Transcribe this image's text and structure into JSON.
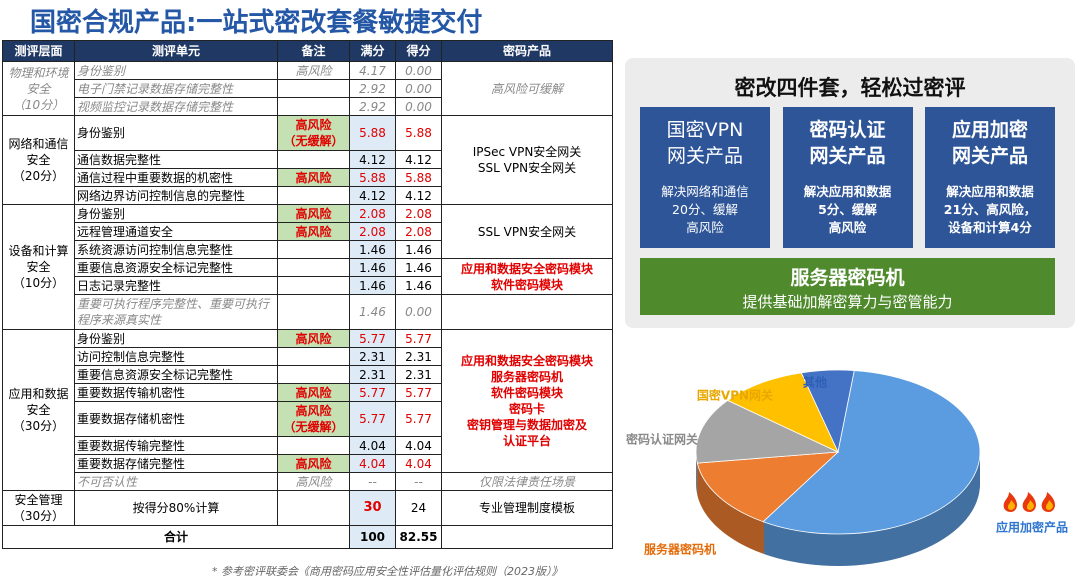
{
  "header": {
    "title": "国密合规产品:一站式密改套餐敏捷交付"
  },
  "table": {
    "columns": [
      "测评层面",
      "测评单元",
      "备注",
      "满分",
      "得分",
      "密码产品"
    ],
    "sections": [
      {
        "level": [
          "物理和环境",
          "安全",
          "（10分）"
        ],
        "muted": true,
        "rows": [
          {
            "unit": "身份鉴别",
            "note": [
              "高风险"
            ],
            "full": "4.17",
            "score": "0.00",
            "muted": true
          },
          {
            "unit": "电子门禁记录数据存储完整性",
            "full": "2.92",
            "score": "0.00",
            "muted": true
          },
          {
            "unit": "视频监控记录数据存储完整性",
            "full": "2.92",
            "score": "0.00",
            "muted": true
          }
        ],
        "products": [
          {
            "lines": [
              "高风险可缓解"
            ],
            "span": 3,
            "muted": true
          }
        ]
      },
      {
        "level": [
          "网络和通信",
          "安全",
          "（20分）"
        ],
        "rows": [
          {
            "unit": "身份鉴别",
            "note": [
              "高风险",
              "（无缓解）"
            ],
            "full": "5.88",
            "score": "5.88"
          },
          {
            "unit": "通信数据完整性",
            "full": "4.12",
            "score": "4.12"
          },
          {
            "unit": "通信过程中重要数据的机密性",
            "note": [
              "高风险"
            ],
            "full": "5.88",
            "score": "5.88"
          },
          {
            "unit": "网络边界访问控制信息的完整性",
            "full": "4.12",
            "score": "4.12"
          }
        ],
        "products": [
          {
            "lines": [
              "IPSec VPN安全网关",
              "SSL VPN安全网关"
            ],
            "span": 4
          }
        ]
      },
      {
        "level": [
          "设备和计算",
          "安全",
          "（10分）"
        ],
        "rows": [
          {
            "unit": "身份鉴别",
            "note": [
              "高风险"
            ],
            "full": "2.08",
            "score": "2.08"
          },
          {
            "unit": "远程管理通道安全",
            "note": [
              "高风险"
            ],
            "full": "2.08",
            "score": "2.08"
          },
          {
            "unit": "系统资源访问控制信息完整性",
            "full": "1.46",
            "score": "1.46"
          },
          {
            "unit": "重要信息资源安全标记完整性",
            "full": "1.46",
            "score": "1.46"
          },
          {
            "unit": "日志记录完整性",
            "full": "1.46",
            "score": "1.46"
          },
          {
            "unit": "重要可执行程序完整性、重要可执行程序来源真实性",
            "full": "1.46",
            "score": "0.00",
            "muted": true
          }
        ],
        "products": [
          {
            "lines": [
              "SSL VPN安全网关"
            ],
            "span": 3
          },
          {
            "lines": [
              "应用和数据安全密码模块",
              "软件密码模块"
            ],
            "span": 2,
            "alert": true
          },
          {
            "lines": [],
            "span": 1
          }
        ]
      },
      {
        "level": [
          "应用和数据",
          "安全",
          "（30分）"
        ],
        "rows": [
          {
            "unit": "身份鉴别",
            "note": [
              "高风险"
            ],
            "full": "5.77",
            "score": "5.77"
          },
          {
            "unit": "访问控制信息完整性",
            "full": "2.31",
            "score": "2.31"
          },
          {
            "unit": "重要信息资源安全标记完整性",
            "full": "2.31",
            "score": "2.31"
          },
          {
            "unit": "重要数据传输机密性",
            "note": [
              "高风险"
            ],
            "full": "5.77",
            "score": "5.77"
          },
          {
            "unit": "重要数据存储机密性",
            "note": [
              "高风险",
              "（无缓解）"
            ],
            "full": "5.77",
            "score": "5.77"
          },
          {
            "unit": "重要数据传输完整性",
            "full": "4.04",
            "score": "4.04"
          },
          {
            "unit": "重要数据存储完整性",
            "note": [
              "高风险"
            ],
            "full": "4.04",
            "score": "4.04"
          },
          {
            "unit": "不可否认性",
            "note": [
              "高风险"
            ],
            "full": "--",
            "score": "--",
            "muted": true
          }
        ],
        "products": [
          {
            "lines": [
              "应用和数据安全密码模块",
              "服务器密码机",
              "软件密码模块",
              "密码卡",
              "密钥管理与数据加密及",
              "认证平台"
            ],
            "span": 7,
            "alert": true
          },
          {
            "lines": [
              "仅限法律责任场景"
            ],
            "span": 1,
            "muted": true
          }
        ]
      },
      {
        "level": [
          "安全管理",
          "（30分）"
        ],
        "emphasis_full": true,
        "rows": [
          {
            "unit": "按得分80%计算",
            "full": "30",
            "score": "24",
            "center": true
          }
        ],
        "products": [
          {
            "lines": [
              "专业管理制度模板"
            ],
            "span": 1
          }
        ]
      }
    ],
    "total": {
      "label": "合计",
      "full": "100",
      "score": "82.55"
    }
  },
  "footnote": "* 参考密评联委会《商用密码应用安全性评估量化评估规则（2023版）》",
  "panel": {
    "title": "密改四件套，轻松过密评",
    "cards": [
      {
        "title": [
          "国密VPN",
          "网关产品"
        ],
        "desc": [
          "解决网络和通信",
          "20分、缓解",
          "高风险"
        ]
      },
      {
        "title": [
          "密码认证",
          "网关产品"
        ],
        "desc": [
          "解决应用和数据",
          "5分、缓解",
          "高风险"
        ]
      },
      {
        "title": [
          "应用加密",
          "网关产品"
        ],
        "desc": [
          "解决应用和数据",
          "21分、高风险，",
          "设备和计算4分"
        ]
      }
    ],
    "base": {
      "title": "服务器密码机",
      "desc": "提供基础加解密算力与密管能力"
    }
  },
  "chart_data": {
    "type": "pie",
    "categories": [
      "其他",
      "应用加密产品",
      "服务器密码机",
      "密码认证网关",
      "国密VPN网关"
    ],
    "values": [
      6,
      57,
      14,
      13,
      10
    ],
    "colors": [
      "#4472c4",
      "#5b9be0",
      "#ed7d31",
      "#a5a5a5",
      "#ffc000"
    ],
    "label_colors": [
      "#2e5fb7",
      "#2e75d0",
      "#e36c0a",
      "#8a8a8a",
      "#e8a800"
    ]
  }
}
